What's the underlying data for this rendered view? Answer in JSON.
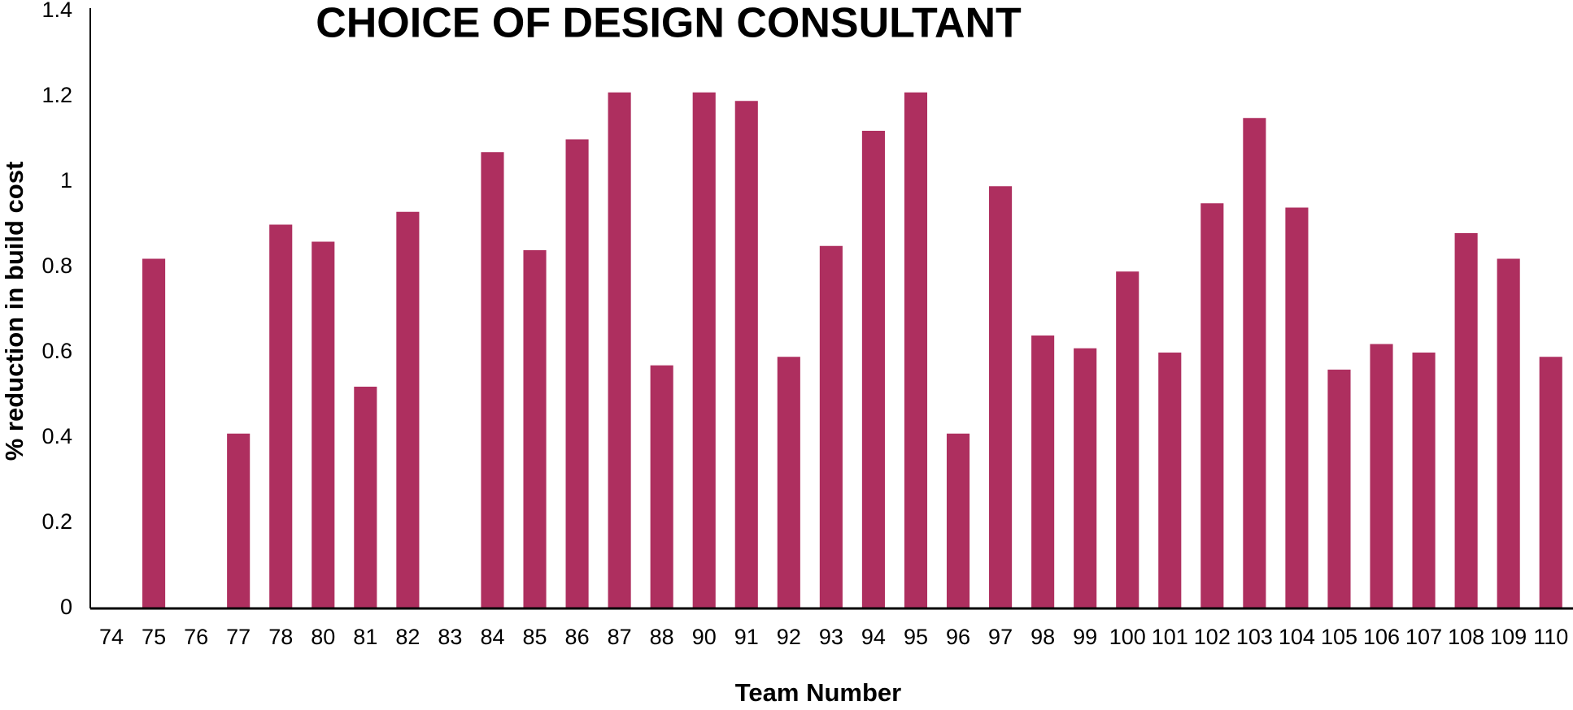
{
  "chart_data": {
    "type": "bar",
    "title": "CHOICE OF DESIGN CONSULTANT",
    "x_label": "Team Number",
    "y_label": "% reduction in build cost",
    "categories": [
      "74",
      "75",
      "76",
      "77",
      "78",
      "80",
      "81",
      "82",
      "83",
      "84",
      "85",
      "86",
      "87",
      "88",
      "90",
      "91",
      "92",
      "93",
      "94",
      "95",
      "96",
      "97",
      "98",
      "99",
      "100",
      "101",
      "102",
      "103",
      "104",
      "105",
      "106",
      "107",
      "108",
      "109",
      "110"
    ],
    "values": [
      0,
      0.82,
      0,
      0.41,
      0.9,
      0.86,
      0.52,
      0.93,
      0,
      1.07,
      0.84,
      1.1,
      1.21,
      0.57,
      1.21,
      1.19,
      0.59,
      0.85,
      1.12,
      1.21,
      0.41,
      0.99,
      0.64,
      0.61,
      0.79,
      0.6,
      0.95,
      1.15,
      0.94,
      0.56,
      0.62,
      0.6,
      0.88,
      0.82,
      0.59
    ],
    "color": "#ae2f5f",
    "ylim": [
      0,
      1.4
    ],
    "yticks": [
      0,
      0.2,
      0.4,
      0.6,
      0.8,
      1,
      1.2,
      1.4
    ],
    "grid": false
  }
}
